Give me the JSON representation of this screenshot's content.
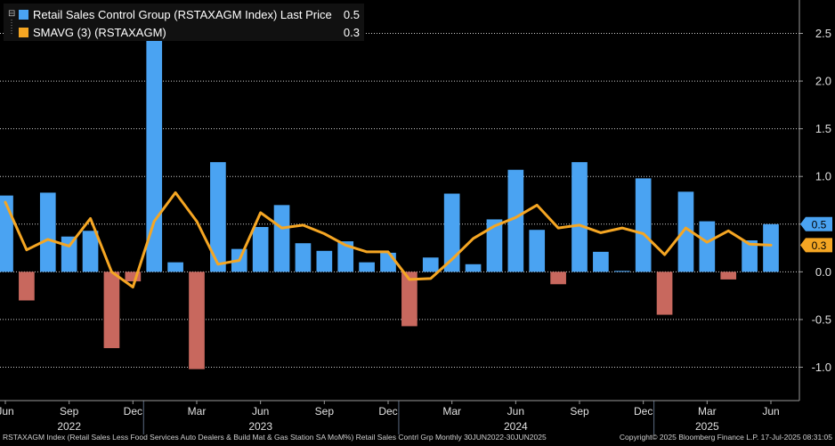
{
  "chart_data": {
    "type": "bar",
    "series": [
      {
        "name": "Retail Sales Control Group (RSTAXAGM Index) Last Price",
        "type": "bar",
        "last_value": "0.5",
        "color_positive": "#4aa3f2",
        "color_negative": "#c8685e",
        "values": [
          0.8,
          -0.3,
          0.83,
          0.37,
          0.43,
          -0.8,
          -0.1,
          2.5,
          0.1,
          -1.02,
          1.15,
          0.24,
          0.47,
          0.7,
          0.3,
          0.22,
          0.32,
          0.1,
          0.2,
          -0.57,
          0.15,
          0.82,
          0.08,
          0.55,
          1.07,
          0.44,
          -0.13,
          1.15,
          0.21,
          0.01,
          0.98,
          -0.45,
          0.84,
          0.53,
          -0.08,
          0.33,
          0.5
        ]
      },
      {
        "name": "SMAVG (3) (RSTAXAGM)",
        "type": "line",
        "last_value": "0.3",
        "color": "#f5a623",
        "values": [
          0.73,
          0.23,
          0.34,
          0.27,
          0.56,
          0.0,
          -0.16,
          0.53,
          0.83,
          0.53,
          0.08,
          0.12,
          0.62,
          0.46,
          0.49,
          0.4,
          0.28,
          0.21,
          0.21,
          -0.08,
          -0.07,
          0.13,
          0.35,
          0.48,
          0.57,
          0.7,
          0.46,
          0.49,
          0.41,
          0.46,
          0.4,
          0.18,
          0.46,
          0.31,
          0.43,
          0.29,
          0.28
        ]
      }
    ],
    "x_ticks": [
      "Jun",
      "Sep",
      "Dec",
      "Mar",
      "Jun",
      "Sep",
      "Dec",
      "Mar",
      "Jun",
      "Sep",
      "Dec",
      "Mar",
      "Jun"
    ],
    "x_tick_indices": [
      0,
      3,
      6,
      9,
      12,
      15,
      18,
      21,
      24,
      27,
      30,
      33,
      36
    ],
    "years": [
      {
        "label": "2022",
        "index": 3
      },
      {
        "label": "2023",
        "index": 12
      },
      {
        "label": "2024",
        "index": 24
      },
      {
        "label": "2025",
        "index": 33
      }
    ],
    "year_dividers": [
      6.5,
      18.5,
      30.5
    ],
    "y_ticks": [
      2.5,
      2.0,
      1.5,
      1.0,
      0.5,
      0.0,
      -0.5,
      -1.0
    ],
    "y_tick_labels": [
      "2.5",
      "2.0",
      "1.5",
      "1.0",
      "0.5",
      "0.0",
      "-0.5",
      "-1.0"
    ],
    "ylim": [
      -1.35,
      2.85
    ],
    "grid": true,
    "legend_position": "top-left"
  },
  "legend": {
    "items": [
      {
        "label": "Retail Sales Control Group (RSTAXAGM Index) Last Price",
        "value": "0.5",
        "color": "#4aa3f2"
      },
      {
        "label": "SMAVG (3) (RSTAXAGM)",
        "value": "0.3",
        "color": "#f5a623"
      }
    ]
  },
  "badges": [
    {
      "text": "0.5",
      "value": 0.5,
      "bg": "#4aa3f2",
      "fg": "#000000"
    },
    {
      "text": "0.3",
      "value": 0.28,
      "bg": "#f5a623",
      "fg": "#000000"
    }
  ],
  "footer": {
    "left": "RSTAXAGM Index (Retail Sales Less Food Services Auto Dealers & Build Mat & Gas Station SA MoM%) Retail Sales Contrl Grp  Monthly 30JUN2022-30JUN2025",
    "right": "Copyright© 2025 Bloomberg Finance L.P.     17-Jul-2025 08:31:05"
  }
}
